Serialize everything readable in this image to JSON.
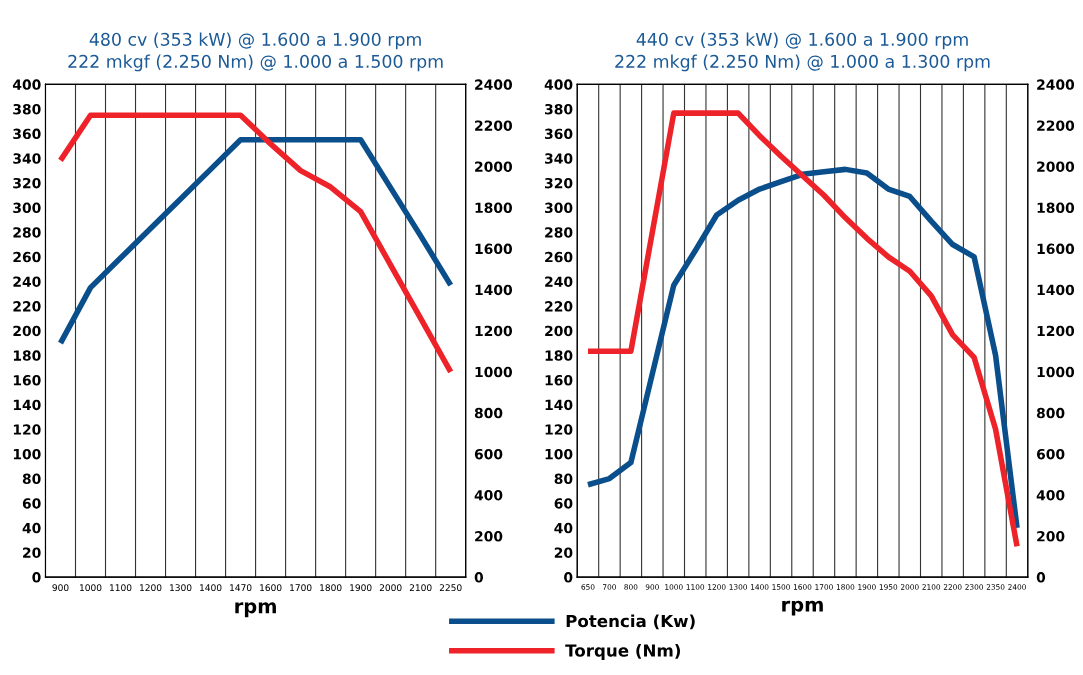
{
  "chart_data": [
    {
      "type": "line",
      "title": "480 cv (353 kW) @ 1.600 a 1.900 rpm",
      "subtitle": "222 mkgf (2.250 Nm) @ 1.000 a 1.500 rpm",
      "xlabel": "rpm",
      "categories": [
        "900",
        "1000",
        "1100",
        "1200",
        "1300",
        "1400",
        "1470",
        "1600",
        "1700",
        "1800",
        "1900",
        "2000",
        "2100",
        "2250"
      ],
      "series": [
        {
          "name": "Potencia (Kw)",
          "color": "#0a4f8c",
          "values": [
            190,
            235,
            259,
            283,
            307,
            331,
            355,
            355,
            355,
            355,
            355,
            316,
            277,
            237
          ]
        },
        {
          "name": "Torque (Nm)",
          "color": "#ee2229",
          "axis": "y2",
          "values": [
            2030,
            2250,
            2250,
            2250,
            2250,
            2250,
            2250,
            2110,
            1980,
            1900,
            1780,
            1520,
            1260,
            1000
          ]
        }
      ],
      "ylim": [
        0,
        400
      ],
      "yticks": [
        0,
        20,
        40,
        60,
        80,
        100,
        120,
        140,
        160,
        180,
        200,
        220,
        240,
        260,
        280,
        300,
        320,
        340,
        360,
        380,
        400
      ],
      "y2lim": [
        0,
        2400
      ],
      "y2ticks": [
        0,
        200,
        400,
        600,
        800,
        1000,
        1200,
        1400,
        1600,
        1800,
        2000,
        2200,
        2400
      ],
      "grid": "x",
      "legend": "bottom",
      "marker": "none",
      "line_style": "solid"
    },
    {
      "type": "line",
      "title": "440 cv (353 kW) @ 1.600 a 1.900 rpm",
      "subtitle": "222 mkgf (2.250 Nm) @ 1.000 a 1.300 rpm",
      "xlabel": "rpm",
      "categories": [
        "650",
        "700",
        "800",
        "900",
        "1000",
        "1100",
        "1200",
        "1300",
        "1400",
        "1500",
        "1600",
        "1700",
        "1800",
        "1900",
        "1950",
        "2000",
        "2100",
        "2200",
        "2300",
        "2350",
        "2400"
      ],
      "series": [
        {
          "color": "#0a4f8c",
          "values": [
            75,
            80,
            93,
            165,
            237,
            265,
            294,
            306,
            315,
            321,
            327,
            329,
            331,
            328,
            315,
            309,
            289,
            270,
            260,
            180,
            40
          ]
        },
        {
          "color": "#ee2229",
          "axis": "y2",
          "values": [
            1100,
            1100,
            1100,
            1680,
            2260,
            2260,
            2260,
            2260,
            2150,
            2050,
            1955,
            1860,
            1750,
            1650,
            1560,
            1490,
            1370,
            1180,
            1070,
            720,
            150
          ]
        }
      ],
      "ylim": [
        0,
        400
      ],
      "yticks": [
        0,
        20,
        40,
        60,
        80,
        100,
        120,
        140,
        160,
        180,
        200,
        220,
        240,
        260,
        280,
        300,
        320,
        340,
        360,
        380,
        400
      ],
      "y2lim": [
        0,
        2400
      ],
      "y2ticks": [
        0,
        200,
        400,
        600,
        800,
        1000,
        1200,
        1400,
        1600,
        1800,
        2000,
        2200,
        2400
      ],
      "grid": "x",
      "marker": "none",
      "line_style": "solid"
    }
  ]
}
